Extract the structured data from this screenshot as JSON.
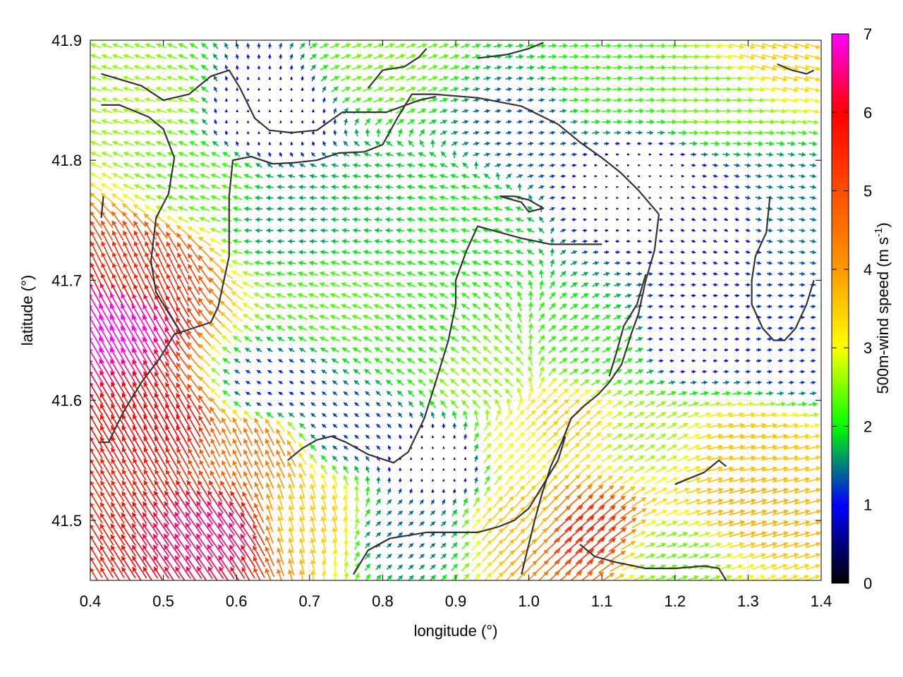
{
  "chart_data": {
    "type": "vector-field",
    "xlabel": "longitude (°)",
    "ylabel": "latitude (°)",
    "xlim": [
      0.4,
      1.4
    ],
    "ylim": [
      41.45,
      41.9
    ],
    "xticks": [
      "0.4",
      "0.5",
      "0.6",
      "0.7",
      "0.8",
      "0.9",
      "1.0",
      "1.1",
      "1.2",
      "1.3",
      "1.4"
    ],
    "xtick_values": [
      0.4,
      0.5,
      0.6,
      0.7,
      0.8,
      0.9,
      1.0,
      1.1,
      1.2,
      1.3,
      1.4
    ],
    "yticks": [
      "41.5",
      "41.6",
      "41.7",
      "41.8",
      "41.9"
    ],
    "ytick_values": [
      41.5,
      41.6,
      41.7,
      41.8,
      41.9
    ],
    "colorbar": {
      "label": "500m-wind speed (m s",
      "label_sup": "-1",
      "label_end": ")",
      "range": [
        0,
        7
      ],
      "ticks": [
        "0",
        "1",
        "2",
        "3",
        "4",
        "5",
        "6",
        "7"
      ],
      "tick_values": [
        0,
        1,
        2,
        3,
        4,
        5,
        6,
        7
      ],
      "palette_stops": [
        {
          "v": 0,
          "color": "#000000"
        },
        {
          "v": 1,
          "color": "#0000ff"
        },
        {
          "v": 2,
          "color": "#00ff00"
        },
        {
          "v": 3,
          "color": "#ffff00"
        },
        {
          "v": 4,
          "color": "#ff9900"
        },
        {
          "v": 6,
          "color": "#ff0000"
        },
        {
          "v": 7,
          "color": "#ff00ff"
        }
      ]
    },
    "grid": true,
    "field_regions": [
      {
        "lon": 0.43,
        "lat": 41.66,
        "speed": 7.0,
        "dir_deg": 120
      },
      {
        "lon": 0.5,
        "lat": 41.58,
        "speed": 6.0,
        "dir_deg": 120
      },
      {
        "lon": 0.57,
        "lat": 41.49,
        "speed": 6.5,
        "dir_deg": 125
      },
      {
        "lon": 0.47,
        "lat": 41.71,
        "speed": 5.5,
        "dir_deg": 115
      },
      {
        "lon": 0.62,
        "lat": 41.56,
        "speed": 4.5,
        "dir_deg": 115
      },
      {
        "lon": 0.7,
        "lat": 41.5,
        "speed": 3.5,
        "dir_deg": 105
      },
      {
        "lon": 0.48,
        "lat": 41.85,
        "speed": 2.6,
        "dir_deg": 165
      },
      {
        "lon": 0.55,
        "lat": 41.78,
        "speed": 2.3,
        "dir_deg": 160
      },
      {
        "lon": 0.64,
        "lat": 41.84,
        "speed": 0.5,
        "dir_deg": 90
      },
      {
        "lon": 0.8,
        "lat": 41.88,
        "speed": 2.4,
        "dir_deg": 20
      },
      {
        "lon": 0.67,
        "lat": 41.75,
        "speed": 1.6,
        "dir_deg": 180
      },
      {
        "lon": 0.78,
        "lat": 41.76,
        "speed": 1.8,
        "dir_deg": 175
      },
      {
        "lon": 0.9,
        "lat": 41.75,
        "speed": 2.0,
        "dir_deg": 165
      },
      {
        "lon": 0.75,
        "lat": 41.68,
        "speed": 2.3,
        "dir_deg": 160
      },
      {
        "lon": 0.85,
        "lat": 41.65,
        "speed": 2.1,
        "dir_deg": 150
      },
      {
        "lon": 0.65,
        "lat": 41.61,
        "speed": 1.1,
        "dir_deg": 150
      },
      {
        "lon": 0.75,
        "lat": 41.58,
        "speed": 1.2,
        "dir_deg": 140
      },
      {
        "lon": 0.88,
        "lat": 41.55,
        "speed": 0.4,
        "dir_deg": 90
      },
      {
        "lon": 0.83,
        "lat": 41.49,
        "speed": 1.4,
        "dir_deg": 40
      },
      {
        "lon": 0.93,
        "lat": 41.62,
        "speed": 2.5,
        "dir_deg": 140
      },
      {
        "lon": 1.0,
        "lat": 41.83,
        "speed": 1.3,
        "dir_deg": 10
      },
      {
        "lon": 1.1,
        "lat": 41.86,
        "speed": 2.2,
        "dir_deg": 5
      },
      {
        "lon": 1.25,
        "lat": 41.85,
        "speed": 2.4,
        "dir_deg": 0
      },
      {
        "lon": 1.35,
        "lat": 41.89,
        "speed": 3.5,
        "dir_deg": 345
      },
      {
        "lon": 1.15,
        "lat": 41.78,
        "speed": 0.4,
        "dir_deg": 0
      },
      {
        "lon": 1.25,
        "lat": 41.75,
        "speed": 0.9,
        "dir_deg": 340
      },
      {
        "lon": 1.35,
        "lat": 41.76,
        "speed": 1.5,
        "dir_deg": 350
      },
      {
        "lon": 1.22,
        "lat": 41.65,
        "speed": 0.8,
        "dir_deg": 0
      },
      {
        "lon": 1.35,
        "lat": 41.64,
        "speed": 1.1,
        "dir_deg": 5
      },
      {
        "lon": 1.1,
        "lat": 41.64,
        "speed": 2.1,
        "dir_deg": 30
      },
      {
        "lon": 1.05,
        "lat": 41.58,
        "speed": 3.5,
        "dir_deg": 40
      },
      {
        "lon": 1.15,
        "lat": 41.57,
        "speed": 2.6,
        "dir_deg": 30
      },
      {
        "lon": 1.3,
        "lat": 41.56,
        "speed": 3.6,
        "dir_deg": 10
      },
      {
        "lon": 1.3,
        "lat": 41.51,
        "speed": 3.8,
        "dir_deg": 15
      },
      {
        "lon": 1.07,
        "lat": 41.49,
        "speed": 5.5,
        "dir_deg": 40
      },
      {
        "lon": 1.0,
        "lat": 41.5,
        "speed": 3.6,
        "dir_deg": 50
      },
      {
        "lon": 1.2,
        "lat": 41.47,
        "speed": 2.4,
        "dir_deg": 20
      },
      {
        "lon": 0.98,
        "lat": 41.56,
        "speed": 3.0,
        "dir_deg": 45
      }
    ],
    "contour_lines": [
      [
        [
          0.415,
          41.872
        ],
        [
          0.47,
          41.862
        ],
        [
          0.5,
          41.85
        ],
        [
          0.535,
          41.855
        ],
        [
          0.565,
          41.87
        ],
        [
          0.59,
          41.875
        ],
        [
          0.605,
          41.86
        ],
        [
          0.625,
          41.835
        ],
        [
          0.645,
          41.825
        ],
        [
          0.675,
          41.823
        ],
        [
          0.71,
          41.825
        ],
        [
          0.745,
          41.84
        ],
        [
          0.775,
          41.84
        ],
        [
          0.805,
          41.84
        ],
        [
          0.85,
          41.85
        ],
        [
          0.873,
          41.853
        ]
      ],
      [
        [
          0.415,
          41.846
        ],
        [
          0.44,
          41.846
        ],
        [
          0.48,
          41.836
        ],
        [
          0.5,
          41.826
        ],
        [
          0.515,
          41.802
        ],
        [
          0.507,
          41.772
        ],
        [
          0.49,
          41.752
        ],
        [
          0.483,
          41.716
        ],
        [
          0.49,
          41.69
        ],
        [
          0.51,
          41.67
        ],
        [
          0.525,
          41.655
        ]
      ],
      [
        [
          0.415,
          41.752
        ],
        [
          0.418,
          41.77
        ]
      ],
      [
        [
          0.411,
          41.565
        ],
        [
          0.425,
          41.565
        ],
        [
          0.445,
          41.59
        ],
        [
          0.47,
          41.615
        ],
        [
          0.495,
          41.635
        ],
        [
          0.515,
          41.655
        ],
        [
          0.54,
          41.66
        ],
        [
          0.565,
          41.665
        ],
        [
          0.575,
          41.678
        ],
        [
          0.59,
          41.72
        ],
        [
          0.59,
          41.77
        ],
        [
          0.595,
          41.8
        ],
        [
          0.62,
          41.803
        ],
        [
          0.65,
          41.797
        ],
        [
          0.68,
          41.798
        ],
        [
          0.71,
          41.8
        ],
        [
          0.74,
          41.806
        ],
        [
          0.775,
          41.807
        ],
        [
          0.8,
          41.813
        ],
        [
          0.82,
          41.835
        ],
        [
          0.84,
          41.855
        ],
        [
          0.87,
          41.855
        ],
        [
          0.93,
          41.852
        ],
        [
          0.99,
          41.845
        ],
        [
          1.04,
          41.83
        ],
        [
          1.07,
          41.815
        ],
        [
          1.1,
          41.802
        ],
        [
          1.125,
          41.79
        ],
        [
          1.15,
          41.775
        ],
        [
          1.178,
          41.755
        ]
      ],
      [
        [
          1.178,
          41.755
        ],
        [
          1.172,
          41.725
        ],
        [
          1.16,
          41.7
        ],
        [
          1.15,
          41.672
        ],
        [
          1.14,
          41.655
        ],
        [
          1.127,
          41.63
        ],
        [
          1.11,
          41.615
        ],
        [
          1.095,
          41.605
        ],
        [
          1.075,
          41.595
        ],
        [
          1.058,
          41.585
        ],
        [
          1.045,
          41.565
        ],
        [
          1.03,
          41.545
        ],
        [
          1.018,
          41.522
        ],
        [
          1.008,
          41.5
        ],
        [
          0.998,
          41.475
        ],
        [
          0.99,
          41.455
        ]
      ],
      [
        [
          1.11,
          41.62
        ],
        [
          1.12,
          41.64
        ],
        [
          1.13,
          41.662
        ],
        [
          1.148,
          41.68
        ],
        [
          1.16,
          41.705
        ]
      ],
      [
        [
          0.67,
          41.55
        ],
        [
          0.69,
          41.56
        ],
        [
          0.71,
          41.567
        ],
        [
          0.73,
          41.57
        ],
        [
          0.75,
          41.565
        ],
        [
          0.78,
          41.555
        ],
        [
          0.815,
          41.548
        ],
        [
          0.835,
          41.557
        ],
        [
          0.857,
          41.585
        ],
        [
          0.875,
          41.62
        ],
        [
          0.89,
          41.65
        ],
        [
          0.9,
          41.68
        ],
        [
          0.9,
          41.7
        ],
        [
          0.915,
          41.725
        ],
        [
          0.93,
          41.745
        ],
        [
          0.96,
          41.74
        ],
        [
          0.99,
          41.735
        ],
        [
          1.03,
          41.73
        ],
        [
          1.06,
          41.73
        ],
        [
          1.1,
          41.73
        ]
      ],
      [
        [
          0.76,
          41.455
        ],
        [
          0.78,
          41.475
        ],
        [
          0.81,
          41.485
        ],
        [
          0.86,
          41.49
        ],
        [
          0.9,
          41.49
        ],
        [
          0.93,
          41.49
        ],
        [
          0.96,
          41.495
        ],
        [
          0.98,
          41.5
        ],
        [
          1.0,
          41.51
        ],
        [
          1.02,
          41.53
        ],
        [
          1.04,
          41.55
        ],
        [
          1.05,
          41.57
        ]
      ],
      [
        [
          1.07,
          41.48
        ],
        [
          1.09,
          41.47
        ],
        [
          1.12,
          41.465
        ],
        [
          1.16,
          41.46
        ],
        [
          1.2,
          41.46
        ],
        [
          1.24,
          41.462
        ],
        [
          1.26,
          41.46
        ],
        [
          1.27,
          41.45
        ]
      ],
      [
        [
          1.2,
          41.53
        ],
        [
          1.24,
          41.54
        ],
        [
          1.26,
          41.55
        ],
        [
          1.27,
          41.545
        ]
      ],
      [
        [
          1.33,
          41.77
        ],
        [
          1.325,
          41.74
        ],
        [
          1.31,
          41.72
        ],
        [
          1.305,
          41.7
        ],
        [
          1.305,
          41.68
        ],
        [
          1.32,
          41.66
        ],
        [
          1.335,
          41.65
        ],
        [
          1.35,
          41.65
        ],
        [
          1.365,
          41.66
        ],
        [
          1.38,
          41.68
        ],
        [
          1.39,
          41.7
        ]
      ],
      [
        [
          0.78,
          41.86
        ],
        [
          0.8,
          41.875
        ],
        [
          0.83,
          41.878
        ],
        [
          0.85,
          41.886
        ],
        [
          0.86,
          41.893
        ]
      ],
      [
        [
          0.93,
          41.885
        ],
        [
          0.97,
          41.888
        ],
        [
          1.0,
          41.893
        ],
        [
          1.02,
          41.898
        ]
      ],
      [
        [
          1.34,
          41.88
        ],
        [
          1.36,
          41.875
        ],
        [
          1.38,
          41.872
        ],
        [
          1.39,
          41.875
        ]
      ],
      [
        [
          0.96,
          41.77
        ],
        [
          0.99,
          41.765
        ],
        [
          1.0,
          41.757
        ],
        [
          1.02,
          41.76
        ],
        [
          1.0,
          41.767
        ],
        [
          0.98,
          41.77
        ],
        [
          0.96,
          41.77
        ]
      ]
    ]
  }
}
